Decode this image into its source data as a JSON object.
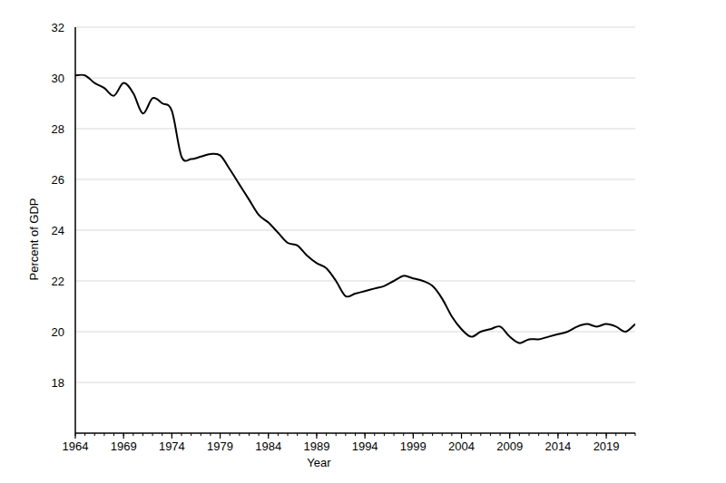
{
  "chart_data": {
    "type": "line",
    "x_label": "Year",
    "y_label": "Percent of GDP",
    "x": [
      1964,
      1965,
      1966,
      1967,
      1968,
      1969,
      1970,
      1971,
      1972,
      1973,
      1974,
      1975,
      1976,
      1977,
      1978,
      1979,
      1980,
      1981,
      1982,
      1983,
      1984,
      1985,
      1986,
      1987,
      1988,
      1989,
      1990,
      1991,
      1992,
      1993,
      1994,
      1995,
      1996,
      1997,
      1998,
      1999,
      2000,
      2001,
      2002,
      2003,
      2004,
      2005,
      2006,
      2007,
      2008,
      2009,
      2010,
      2011,
      2012,
      2013,
      2014,
      2015,
      2016,
      2017,
      2018,
      2019,
      2020,
      2021,
      2022
    ],
    "values": [
      30.1,
      30.1,
      29.8,
      29.6,
      29.3,
      29.8,
      29.4,
      28.6,
      29.2,
      29.0,
      28.7,
      26.9,
      26.8,
      26.9,
      27.0,
      26.95,
      26.4,
      25.8,
      25.2,
      24.6,
      24.3,
      23.9,
      23.5,
      23.4,
      23.0,
      22.7,
      22.5,
      22.0,
      21.4,
      21.5,
      21.6,
      21.7,
      21.8,
      22.0,
      22.2,
      22.1,
      22.0,
      21.8,
      21.3,
      20.6,
      20.1,
      19.8,
      20.0,
      20.1,
      20.2,
      19.8,
      19.55,
      19.7,
      19.7,
      19.8,
      19.9,
      20.0,
      20.2,
      20.3,
      20.2,
      20.3,
      20.2,
      20.0,
      20.3
    ],
    "color": "#000000",
    "xlim": [
      1964,
      2022
    ],
    "xticks": [
      1964,
      1969,
      1974,
      1979,
      1984,
      1989,
      1994,
      1999,
      2004,
      2009,
      2014,
      2019
    ],
    "ylim": [
      16,
      32
    ],
    "yticks": [
      18,
      20,
      22,
      24,
      26,
      28,
      30,
      32
    ],
    "grid": true
  }
}
